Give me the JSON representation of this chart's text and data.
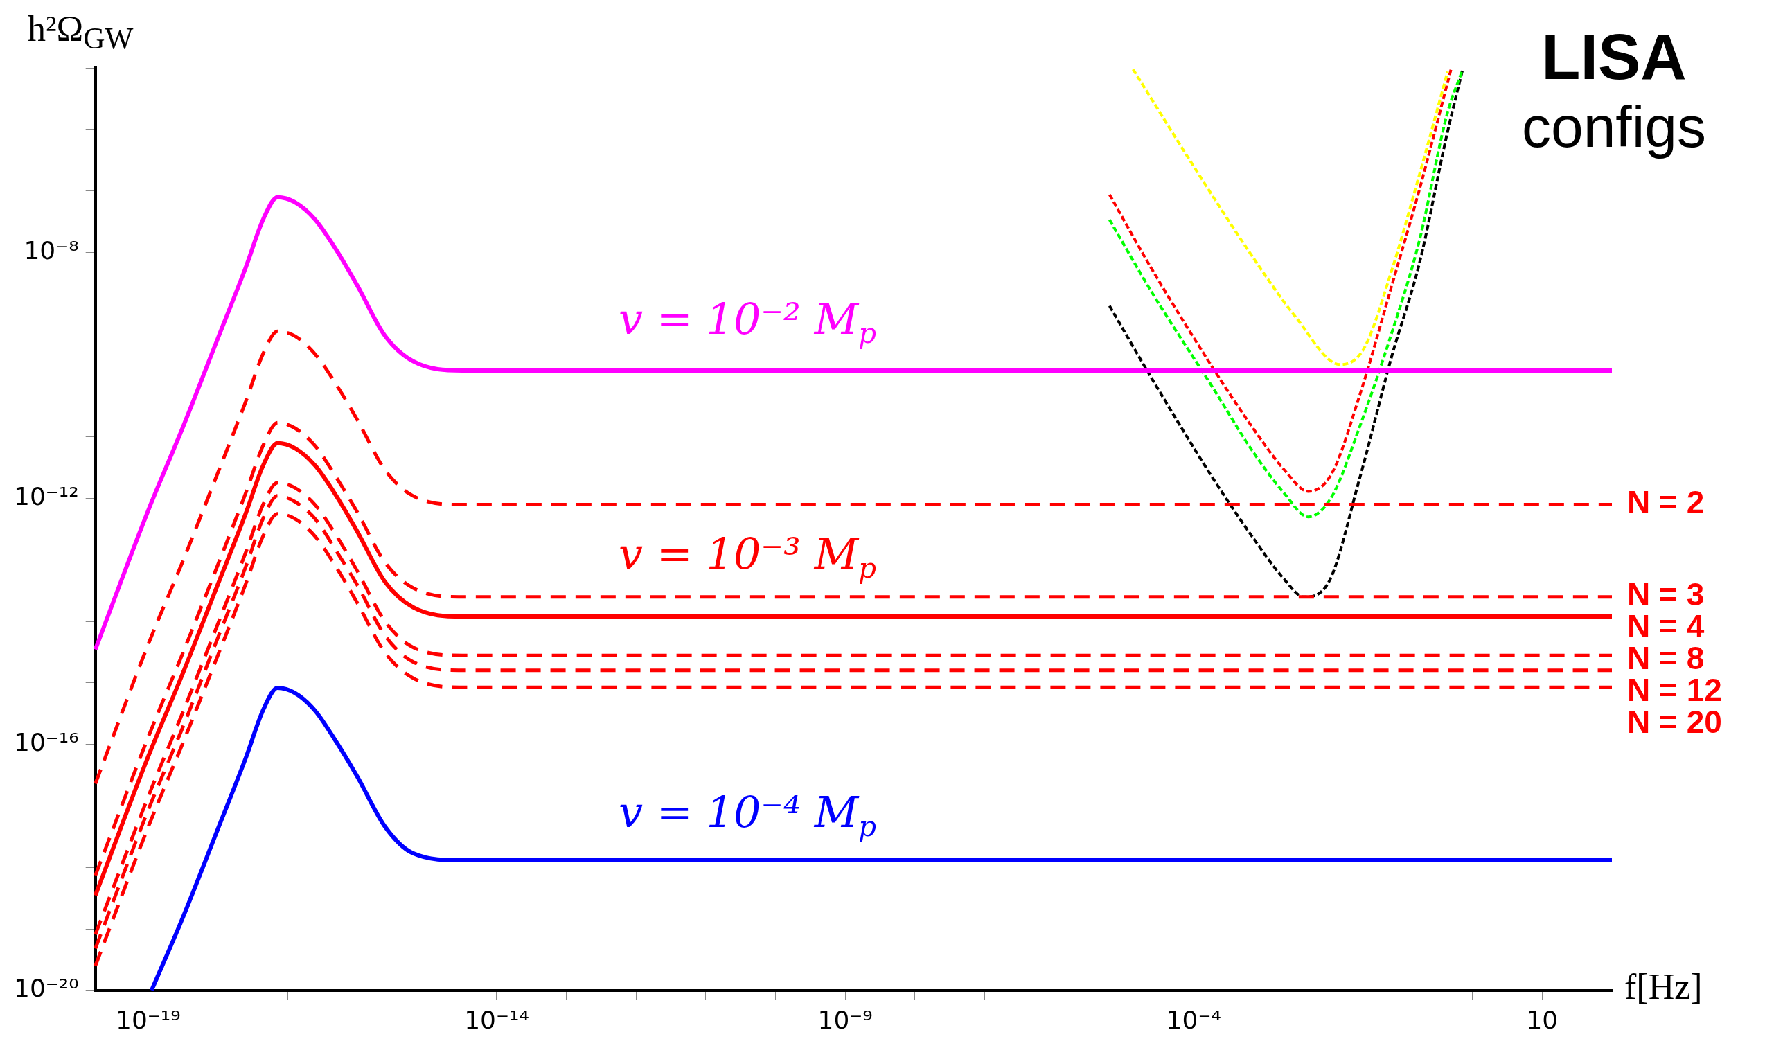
{
  "chart_data": {
    "type": "line",
    "title": "LISA",
    "subtitle": "configs",
    "xlabel": "f[Hz]",
    "ylabel": "h²Ω$_{GW}$",
    "log": "xy",
    "marker": "none",
    "xlim": [
      1.75e-20,
      100
    ],
    "ylim": [
      1e-20,
      1e-05
    ],
    "xticks": [
      {
        "value": 1e-19,
        "label": "10⁻¹⁹"
      },
      {
        "value": 1e-18,
        "label": null
      },
      {
        "value": 1e-17,
        "label": null
      },
      {
        "value": 1e-16,
        "label": null
      },
      {
        "value": 1e-15,
        "label": null
      },
      {
        "value": 1e-14,
        "label": "10⁻¹⁴"
      },
      {
        "value": 1e-13,
        "label": null
      },
      {
        "value": 1e-12,
        "label": null
      },
      {
        "value": 1e-11,
        "label": null
      },
      {
        "value": 1e-10,
        "label": null
      },
      {
        "value": 1e-09,
        "label": "10⁻⁹"
      },
      {
        "value": 1e-08,
        "label": null
      },
      {
        "value": 1e-07,
        "label": null
      },
      {
        "value": 1e-06,
        "label": null
      },
      {
        "value": 1e-05,
        "label": null
      },
      {
        "value": 0.0001,
        "label": "10⁻⁴"
      },
      {
        "value": 0.001,
        "label": null
      },
      {
        "value": 0.01,
        "label": null
      },
      {
        "value": 0.1,
        "label": null
      },
      {
        "value": 1,
        "label": null
      },
      10
    ],
    "yticks": [
      {
        "value": 1e-20,
        "label": "10⁻²⁰"
      },
      {
        "value": 1e-19,
        "label": null
      },
      {
        "value": 1e-18,
        "label": null
      },
      {
        "value": 1e-17,
        "label": null
      },
      {
        "value": 1e-16,
        "label": "10⁻¹⁶"
      },
      {
        "value": 1e-15,
        "label": null
      },
      {
        "value": 1e-14,
        "label": null
      },
      {
        "value": 1e-13,
        "label": null
      },
      {
        "value": 1e-12,
        "label": "10⁻¹²"
      },
      {
        "value": 1e-11,
        "label": null
      },
      {
        "value": 1e-10,
        "label": null
      },
      {
        "value": 1e-09,
        "label": null
      },
      {
        "value": 1e-08,
        "label": "10⁻⁸"
      },
      {
        "value": 1e-07,
        "label": null
      },
      {
        "value": 1e-06,
        "label": null
      },
      {
        "value": 1e-05,
        "label": null
      }
    ],
    "x": [
      1.75e-20,
      1e-19,
      3.2e-19,
      1e-18,
      2.5e-18,
      4.5e-18,
      7.2e-18,
      1.26e-17,
      2.5e-17,
      5e-17,
      1e-16,
      2.5e-16,
      6.3e-16,
      3.2e-15,
      100
    ],
    "series": [
      {
        "color": "#ff00ff",
        "line_style": "solid",
        "values": [
          3.5e-15,
          6.3e-13,
          1.5e-11,
          4e-10,
          5.6e-09,
          3.5e-08,
          7.9e-08,
          6.6e-08,
          3.4e-08,
          1.1e-08,
          2.9e-09,
          4.4e-10,
          1.7e-10,
          1.2e-10,
          1.2e-10
        ]
      },
      {
        "name": "N = 2",
        "color": "#ff0000",
        "line_style": "dashed",
        "values": [
          2.3e-17,
          4.2e-15,
          1e-13,
          2.6e-12,
          3.7e-11,
          2.3e-10,
          5.2e-10,
          4.4e-10,
          2.2e-10,
          7.1e-11,
          1.9e-11,
          2.9e-12,
          1.1e-12,
          7.9e-13,
          7.9e-13
        ]
      },
      {
        "name": "N = 3",
        "color": "#ff0000",
        "line_style": "dashed",
        "values": [
          7.4e-19,
          1.3e-16,
          3.2e-15,
          8.3e-14,
          1.2e-12,
          7.4e-12,
          1.7e-11,
          1.4e-11,
          7.1e-12,
          2.2e-12,
          6e-13,
          9.1e-14,
          3.5e-14,
          2.5e-14,
          2.5e-14
        ]
      },
      {
        "name": "N = 4",
        "color": "#ff0000",
        "line_style": "solid",
        "values": [
          3.5e-19,
          6.3e-17,
          1.5e-15,
          4e-14,
          5.6e-13,
          3.5e-12,
          7.9e-12,
          6.6e-12,
          3.4e-12,
          1.1e-12,
          2.9e-13,
          4.4e-14,
          1.7e-14,
          1.2e-14,
          1.2e-14
        ]
      },
      {
        "name": "N = 8",
        "color": "#ff0000",
        "line_style": "dashed",
        "values": [
          8.1e-20,
          1.4e-17,
          3.5e-16,
          9.1e-15,
          1.3e-13,
          8.1e-13,
          1.8e-12,
          1.5e-12,
          7.8e-13,
          2.5e-13,
          6.6e-14,
          1e-14,
          3.8e-15,
          2.8e-15,
          2.8e-15
        ]
      },
      {
        "name": "N = 12",
        "color": "#ff0000",
        "line_style": "dashed",
        "values": [
          4.8e-20,
          8.5e-18,
          2e-16,
          5.4e-15,
          7.6e-14,
          4.8e-13,
          1.1e-12,
          8.9e-13,
          4.6e-13,
          1.4e-13,
          3.9e-14,
          5.9e-15,
          2.2e-15,
          1.6e-15,
          1.6e-15
        ]
      },
      {
        "name": "N = 20",
        "color": "#ff0000",
        "line_style": "dashed",
        "values": [
          2.5e-20,
          4.5e-18,
          1.1e-16,
          2.8e-15,
          4e-14,
          2.5e-13,
          5.6e-13,
          4.7e-13,
          2.4e-13,
          7.6e-14,
          2e-14,
          3.1e-15,
          1.2e-15,
          8.5e-16,
          8.5e-16
        ]
      },
      {
        "color": "#0000ff",
        "line_style": "solid",
        "x": [
          1.12e-19,
          3.2e-19,
          1e-18,
          2.5e-18,
          4.5e-18,
          7.2e-18,
          1.26e-17,
          2.5e-17,
          5e-17,
          1e-16,
          2.5e-16,
          6.3e-16,
          3.2e-15,
          100
        ],
        "values": [
          1e-20,
          1.6e-19,
          4.2e-18,
          5.9e-17,
          3.7e-16,
          8.3e-16,
          6.9e-16,
          3.5e-16,
          1.1e-16,
          3e-17,
          4.6e-18,
          1.7e-18,
          1.3e-18,
          1.3e-18
        ]
      },
      {
        "color": "#ffff00",
        "line_style": "dotted",
        "x": [
          1.35e-05,
          9.8e-05,
          0.00068,
          0.00295,
          0.0126,
          0.0275,
          0.069,
          0.17,
          0.44
        ],
        "values": [
          9.5e-06,
          2.6e-07,
          8.9e-09,
          8.7e-10,
          1.5e-10,
          2.7e-10,
          5e-09,
          1.7e-07,
          8.7e-06
        ]
      },
      {
        "color": "#ff0000",
        "line_style": "dotted",
        "x": [
          6.2e-06,
          2.6e-05,
          0.00019,
          0.00069,
          0.002,
          0.0044,
          0.0095,
          0.024,
          0.069,
          0.174,
          0.49
        ],
        "values": [
          8.7e-08,
          5e-09,
          1.3e-10,
          1.45e-11,
          2.9e-12,
          1.3e-12,
          2.5e-12,
          4.7e-11,
          2.8e-09,
          1.07e-07,
          9.3e-06
        ]
      },
      {
        "color": "#00ff00",
        "line_style": "dotted",
        "x": [
          6.2e-06,
          2.6e-05,
          0.00019,
          0.00069,
          0.002,
          0.0044,
          0.0095,
          0.024,
          0.069,
          0.174,
          0.43,
          0.72
        ],
        "values": [
          3.4e-08,
          2.1e-09,
          6.2e-11,
          6e-12,
          1.2e-12,
          5e-13,
          1.05e-12,
          1.45e-11,
          4.8e-10,
          1.6e-08,
          1.74e-06,
          9.3e-06
        ]
      },
      {
        "color": "#000000",
        "line_style": "dotted",
        "x": [
          6.2e-06,
          2.6e-05,
          0.00019,
          0.00069,
          0.002,
          0.0038,
          0.0085,
          0.024,
          0.069,
          0.174,
          0.43,
          0.72
        ],
        "values": [
          1.35e-09,
          8.3e-11,
          2.1e-12,
          2.4e-13,
          4.8e-14,
          2.5e-14,
          4.2e-14,
          2.1e-12,
          2e-10,
          6.8e-09,
          8.3e-07,
          9.3e-06
        ]
      }
    ],
    "annotations": [
      "v = 10⁻² M$_{p}$",
      "v = 10⁻³ M$_{p}$",
      "v = 10⁻⁴ M$_{p}$"
    ]
  }
}
